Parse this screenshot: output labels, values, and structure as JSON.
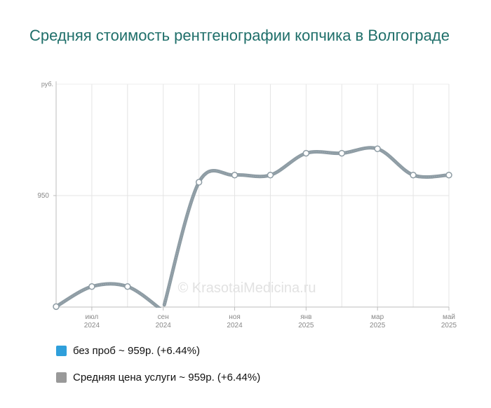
{
  "chart_data": {
    "type": "line",
    "title": "Средняя стоимость рентгенографии копчика в Волгограде",
    "y_unit_label": "руб.",
    "y_ticks": [
      {
        "value": 950,
        "label": "950"
      }
    ],
    "ylim": [
      900,
      1000
    ],
    "x_ticks": [
      {
        "x": 1,
        "label1": "июл",
        "label2": "2024"
      },
      {
        "x": 3,
        "label1": "сен",
        "label2": "2024"
      },
      {
        "x": 5,
        "label1": "ноя",
        "label2": "2024"
      },
      {
        "x": 7,
        "label1": "янв",
        "label2": "2025"
      },
      {
        "x": 9,
        "label1": "мар",
        "label2": "2025"
      },
      {
        "x": 11,
        "label1": "май",
        "label2": "2025"
      }
    ],
    "xlim": [
      0,
      11
    ],
    "series": [
      {
        "name": "Средняя цена услуги ~ 959р. (+6.44%)",
        "color": "#8e9ca4",
        "segments": [
          [
            [
              0,
              900.2
            ],
            [
              1,
              909.2
            ],
            [
              2,
              909.2
            ],
            [
              2.97,
              898.5
            ]
          ],
          [
            [
              3.03,
              901.0
            ],
            [
              4,
              956.0
            ],
            [
              5,
              959.2
            ],
            [
              6,
              959.2
            ],
            [
              7,
              969.0
            ],
            [
              8,
              969.0
            ],
            [
              9,
              971.0
            ],
            [
              10,
              959.2
            ],
            [
              11,
              959.2
            ]
          ]
        ]
      }
    ],
    "legend": [
      {
        "label": "без проб ~ 959р. (+6.44%)",
        "color": "#2f9fdb"
      },
      {
        "label": "Средняя цена услуги ~ 959р. (+6.44%)",
        "color": "#999999"
      }
    ],
    "watermark": "© KrasotaiMedicina.ru",
    "grid": true
  }
}
